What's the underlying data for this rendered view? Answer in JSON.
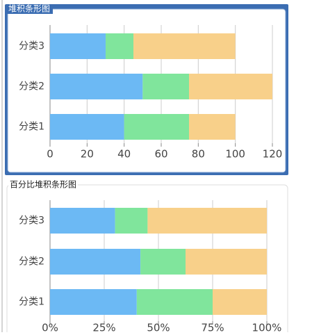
{
  "chart_data": [
    {
      "type": "stacked-bar",
      "title": "堆积条形图",
      "categories": [
        "分类1",
        "分类2",
        "分类3"
      ],
      "series": [
        {
          "color": "#6cb9f4",
          "values": [
            40,
            50,
            30
          ]
        },
        {
          "color": "#80e59c",
          "values": [
            35,
            25,
            15
          ]
        },
        {
          "color": "#f8d08a",
          "values": [
            25,
            45,
            55
          ]
        }
      ],
      "xlim": [
        0,
        120
      ],
      "xticks": [
        0,
        20,
        40,
        60,
        80,
        100,
        120
      ],
      "grid": true
    },
    {
      "type": "stacked-bar",
      "title": "百分比堆积条形图",
      "categories": [
        "分类1",
        "分类2",
        "分类3"
      ],
      "series": [
        {
          "color": "#6cb9f4",
          "values": [
            40,
            41.7,
            30
          ]
        },
        {
          "color": "#80e59c",
          "values": [
            35,
            20.8,
            15
          ]
        },
        {
          "color": "#f8d08a",
          "values": [
            25,
            37.5,
            55
          ]
        }
      ],
      "xlim": [
        0,
        100
      ],
      "xticks": [
        {
          "value": 0,
          "label": "0%"
        },
        {
          "value": 25,
          "label": "25%"
        },
        {
          "value": 50,
          "label": "50%"
        },
        {
          "value": 75,
          "label": "75%"
        },
        {
          "value": 100,
          "label": "100%"
        }
      ],
      "grid": true
    }
  ]
}
